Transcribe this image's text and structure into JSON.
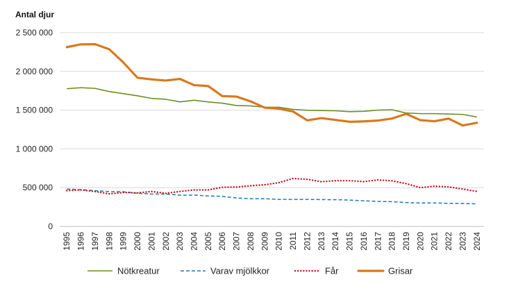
{
  "chart_data": {
    "type": "line",
    "title": "",
    "ylabel": "Antal djur",
    "xlabel": "",
    "ylim": [
      0,
      2500000
    ],
    "yticks": [
      0,
      500000,
      1000000,
      1500000,
      2000000,
      2500000
    ],
    "ytick_labels": [
      "0",
      "500 000",
      "1 000 000",
      "1 500 000",
      "2 000 000",
      "2 500 000"
    ],
    "grid": "horizontal",
    "legend": "bottom",
    "x": [
      "1995",
      "1996",
      "1997",
      "1998",
      "1999",
      "2000",
      "2001",
      "2002",
      "2003",
      "2004",
      "2005",
      "2006",
      "2007",
      "2008",
      "2009",
      "2010",
      "2011",
      "2012",
      "2013",
      "2014",
      "2015",
      "2016",
      "2017",
      "2018",
      "2019",
      "2020",
      "2021",
      "2022",
      "2023",
      "2024"
    ],
    "series": [
      {
        "name": "Nötkreatur",
        "color": "#6b8e23",
        "style": "solid",
        "values": [
          1777000,
          1790000,
          1781000,
          1740000,
          1713000,
          1685000,
          1652000,
          1640000,
          1607000,
          1628000,
          1606000,
          1590000,
          1560000,
          1555000,
          1537000,
          1537000,
          1510000,
          1498000,
          1495000,
          1492000,
          1480000,
          1485000,
          1500000,
          1505000,
          1463000,
          1455000,
          1455000,
          1450000,
          1445000,
          1412000
        ]
      },
      {
        "name": "Varav mjölkkor",
        "color": "#1f77b4",
        "style": "dashed",
        "values": [
          482000,
          474000,
          462000,
          449000,
          447000,
          428000,
          418000,
          417000,
          403000,
          404000,
          393000,
          388000,
          367000,
          357000,
          357000,
          348000,
          348000,
          348000,
          346000,
          345000,
          340000,
          330000,
          323000,
          319000,
          308000,
          302000,
          302000,
          298000,
          296000,
          291000
        ]
      },
      {
        "name": "Får",
        "color": "#c0141e",
        "style": "dotted",
        "values": [
          462000,
          470000,
          450000,
          421000,
          437000,
          432000,
          451000,
          427000,
          451000,
          471000,
          471000,
          505000,
          508000,
          525000,
          537000,
          565000,
          618000,
          608000,
          577000,
          590000,
          590000,
          578000,
          600000,
          588000,
          552000,
          500000,
          519000,
          510000,
          482000,
          452000
        ]
      },
      {
        "name": "Grisar",
        "color": "#d8791c",
        "style": "solid-thick",
        "values": [
          2313000,
          2349000,
          2351000,
          2286000,
          2115000,
          1918000,
          1897000,
          1882000,
          1903000,
          1823000,
          1811000,
          1681000,
          1675000,
          1613000,
          1532000,
          1520000,
          1483000,
          1368000,
          1397000,
          1374000,
          1350000,
          1355000,
          1366000,
          1392000,
          1452000,
          1371000,
          1357000,
          1391000,
          1302000,
          1337000
        ]
      }
    ]
  }
}
